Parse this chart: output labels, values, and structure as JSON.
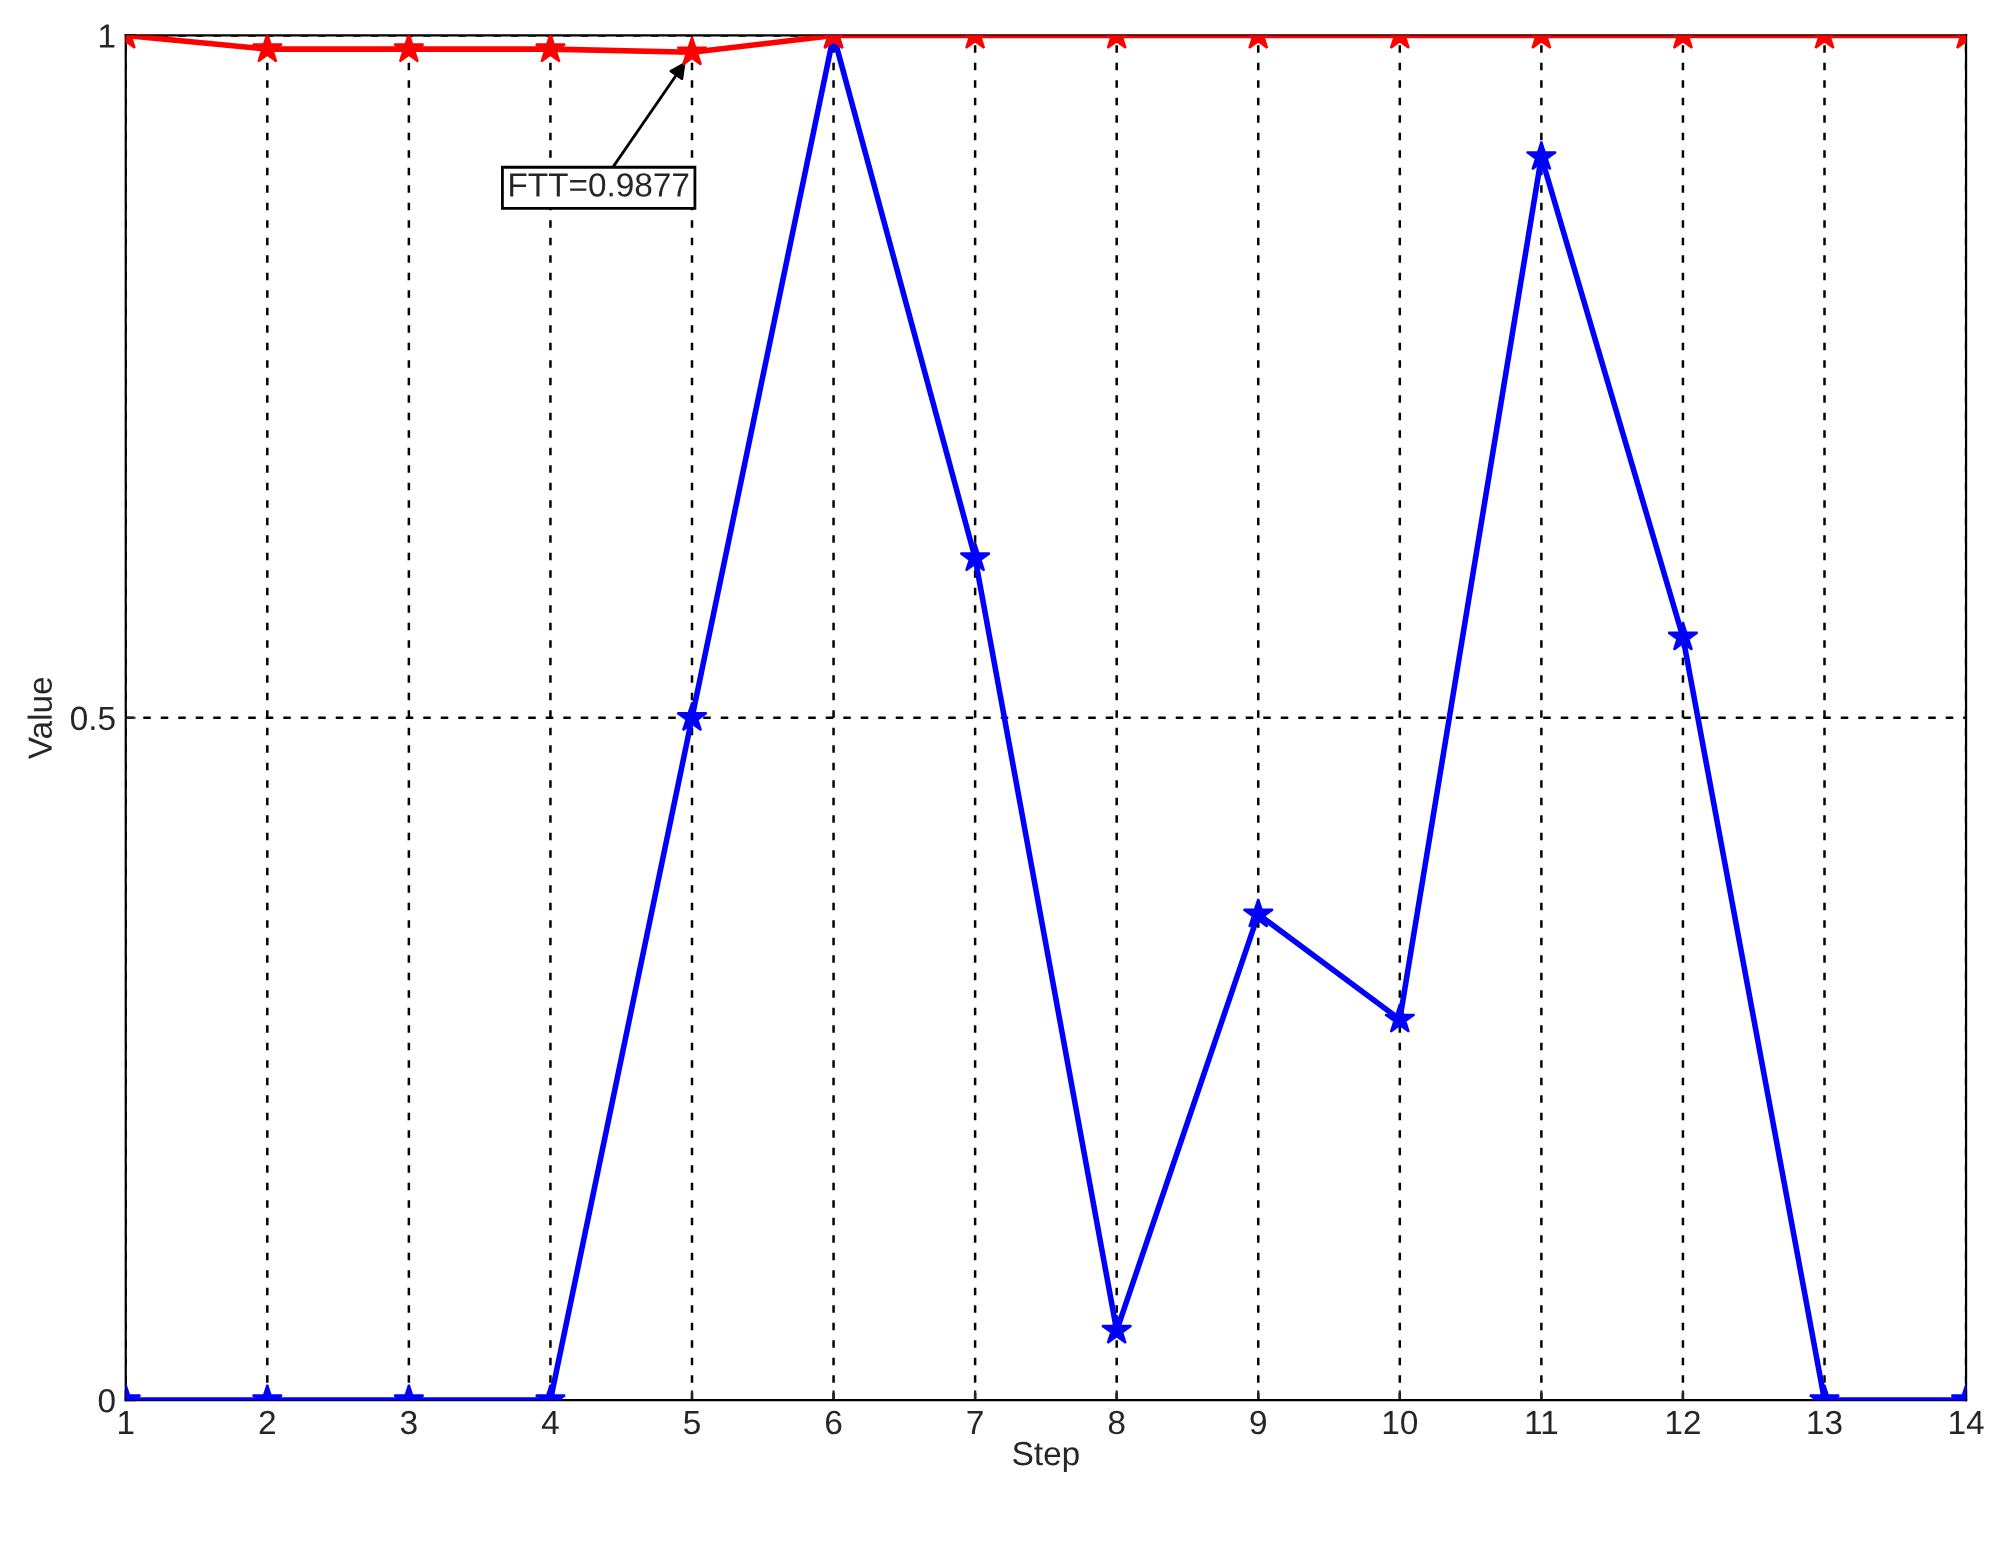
{
  "chart_data": {
    "type": "line",
    "xlabel": "Step",
    "ylabel": "Value",
    "x": [
      1,
      2,
      3,
      4,
      5,
      6,
      7,
      8,
      9,
      10,
      11,
      12,
      13,
      14
    ],
    "series": [
      {
        "color": "#ff0000",
        "values": [
          1,
          0.99,
          0.99,
          0.99,
          0.9877,
          1,
          1,
          1,
          1,
          1,
          1,
          1,
          1,
          1
        ]
      },
      {
        "color": "#0000ff",
        "values": [
          0,
          0,
          0,
          0,
          0.5,
          1,
          0.617,
          0.051,
          0.356,
          0.279,
          0.911,
          0.559,
          0,
          0
        ]
      }
    ],
    "annotations": [
      {
        "text": "FTT=0.9877",
        "x": 5,
        "y": 0.9877
      }
    ],
    "xlim": [
      1,
      14
    ],
    "ylim": [
      0,
      1
    ],
    "xticks": [
      1,
      2,
      3,
      4,
      5,
      6,
      7,
      8,
      9,
      10,
      11,
      12,
      13,
      14
    ],
    "yticks": [
      0,
      0.5,
      1
    ],
    "grid": true,
    "marker": "star",
    "line_style": "solid"
  }
}
